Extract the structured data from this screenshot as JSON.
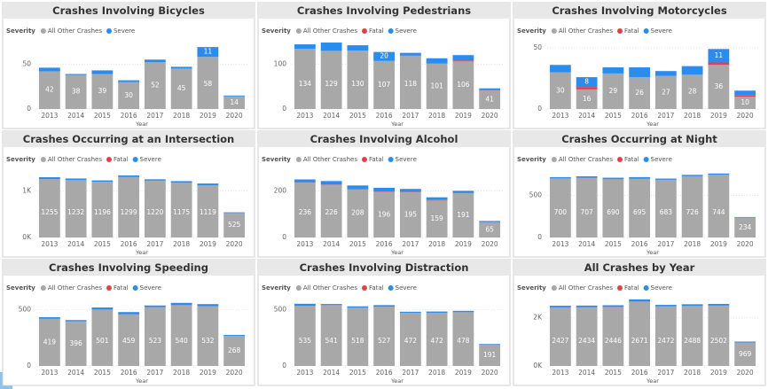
{
  "chart_data": [
    {
      "type": "bar",
      "title": "Crashes Involving Bicycles",
      "legend_title": "Severity",
      "x_label": "Year",
      "categories": [
        "2013",
        "2014",
        "2015",
        "2016",
        "2017",
        "2018",
        "2019",
        "2020"
      ],
      "ylim": [
        0,
        75
      ],
      "yticks": [
        0,
        50
      ],
      "series": [
        {
          "name": "All Other Crashes",
          "color": "#a8a8a8",
          "values": [
            42,
            38,
            39,
            30,
            52,
            45,
            58,
            14
          ]
        },
        {
          "name": "Severe",
          "color": "#2b8cf0",
          "values": [
            4,
            1,
            4,
            2,
            3,
            2,
            11,
            1
          ],
          "value_labels": [
            null,
            null,
            null,
            null,
            null,
            null,
            "11",
            null
          ]
        }
      ]
    },
    {
      "type": "bar",
      "title": "Crashes Involving Pedestrians",
      "legend_title": "Severity",
      "x_label": "Year",
      "categories": [
        "2013",
        "2014",
        "2015",
        "2016",
        "2017",
        "2018",
        "2019",
        "2020"
      ],
      "ylim": [
        0,
        150
      ],
      "yticks": [
        0,
        100
      ],
      "series": [
        {
          "name": "All Other Crashes",
          "color": "#a8a8a8",
          "values": [
            134,
            129,
            130,
            107,
            118,
            101,
            106,
            41
          ]
        },
        {
          "name": "Fatal",
          "color": "#e0404a",
          "values": [
            0,
            1,
            0,
            0,
            1,
            0,
            2,
            1
          ]
        },
        {
          "name": "Severe",
          "color": "#2b8cf0",
          "values": [
            10,
            18,
            12,
            20,
            6,
            12,
            12,
            4
          ],
          "value_labels": [
            null,
            null,
            null,
            "20",
            null,
            null,
            null,
            null
          ]
        }
      ]
    },
    {
      "type": "bar",
      "title": "Crashes Involving Motorcycles",
      "legend_title": "Severity",
      "x_label": "Year",
      "categories": [
        "2013",
        "2014",
        "2015",
        "2016",
        "2017",
        "2018",
        "2019",
        "2020"
      ],
      "ylim": [
        0,
        55
      ],
      "yticks": [
        0,
        50
      ],
      "series": [
        {
          "name": "All Other Crashes",
          "color": "#a8a8a8",
          "values": [
            30,
            16,
            29,
            26,
            27,
            28,
            36,
            10
          ]
        },
        {
          "name": "Fatal",
          "color": "#e0404a",
          "values": [
            0,
            2,
            0,
            0,
            0,
            0,
            2,
            1
          ]
        },
        {
          "name": "Severe",
          "color": "#2b8cf0",
          "values": [
            6,
            8,
            5,
            8,
            4,
            7,
            11,
            4
          ],
          "value_labels": [
            null,
            "8",
            null,
            null,
            null,
            null,
            "11",
            null
          ]
        }
      ]
    },
    {
      "type": "bar",
      "title": "Crashes Occurring at an Intersection",
      "legend_title": "Severity",
      "x_label": "Year",
      "categories": [
        "2013",
        "2014",
        "2015",
        "2016",
        "2017",
        "2018",
        "2019",
        "2020"
      ],
      "ylim": [
        0,
        1450
      ],
      "yticks": [
        {
          "value": 0,
          "label": "0K"
        },
        {
          "value": 1000,
          "label": "1K"
        }
      ],
      "series": [
        {
          "name": "All Other Crashes",
          "color": "#a8a8a8",
          "values": [
            1255,
            1232,
            1196,
            1299,
            1220,
            1175,
            1119,
            525
          ]
        },
        {
          "name": "Fatal",
          "color": "#e0404a",
          "values": [
            3,
            3,
            3,
            3,
            3,
            3,
            3,
            2
          ]
        },
        {
          "name": "Severe",
          "color": "#2b8cf0",
          "values": [
            40,
            35,
            30,
            35,
            30,
            35,
            40,
            15
          ]
        }
      ]
    },
    {
      "type": "bar",
      "title": "Crashes Involving Alcohol",
      "legend_title": "Severity",
      "x_label": "Year",
      "categories": [
        "2013",
        "2014",
        "2015",
        "2016",
        "2017",
        "2018",
        "2019",
        "2020"
      ],
      "ylim": [
        0,
        290
      ],
      "yticks": [
        0,
        200
      ],
      "series": [
        {
          "name": "All Other Crashes",
          "color": "#a8a8a8",
          "values": [
            236,
            226,
            208,
            196,
            195,
            159,
            191,
            65
          ]
        },
        {
          "name": "Fatal",
          "color": "#e0404a",
          "values": [
            2,
            2,
            2,
            2,
            2,
            2,
            2,
            1
          ]
        },
        {
          "name": "Severe",
          "color": "#2b8cf0",
          "values": [
            12,
            15,
            14,
            16,
            12,
            12,
            8,
            5
          ]
        }
      ]
    },
    {
      "type": "bar",
      "title": "Crashes Occurring at Night",
      "legend_title": "Severity",
      "x_label": "Year",
      "categories": [
        "2013",
        "2014",
        "2015",
        "2016",
        "2017",
        "2018",
        "2019",
        "2020"
      ],
      "ylim": [
        0,
        800
      ],
      "yticks": [
        0,
        500
      ],
      "series": [
        {
          "name": "All Other Crashes",
          "color": "#a8a8a8",
          "values": [
            700,
            707,
            690,
            695,
            683,
            726,
            744,
            234
          ]
        },
        {
          "name": "Fatal",
          "color": "#e0404a",
          "values": [
            2,
            2,
            2,
            2,
            2,
            2,
            2,
            1
          ]
        },
        {
          "name": "Severe",
          "color": "#2b8cf0",
          "values": [
            15,
            18,
            18,
            20,
            15,
            16,
            14,
            8
          ]
        }
      ]
    },
    {
      "type": "bar",
      "title": "Crashes Involving Speeding",
      "legend_title": "Severity",
      "x_label": "Year",
      "categories": [
        "2013",
        "2014",
        "2015",
        "2016",
        "2017",
        "2018",
        "2019",
        "2020"
      ],
      "ylim": [
        0,
        600
      ],
      "yticks": [
        0,
        500
      ],
      "series": [
        {
          "name": "All Other Crashes",
          "color": "#a8a8a8",
          "values": [
            419,
            396,
            501,
            459,
            523,
            540,
            532,
            268
          ]
        },
        {
          "name": "Fatal",
          "color": "#e0404a",
          "values": [
            1,
            1,
            2,
            1,
            1,
            2,
            1,
            1
          ]
        },
        {
          "name": "Severe",
          "color": "#2b8cf0",
          "values": [
            15,
            12,
            18,
            20,
            15,
            20,
            18,
            8
          ]
        }
      ]
    },
    {
      "type": "bar",
      "title": "Crashes Involving Distraction",
      "legend_title": "Severity",
      "x_label": "Year",
      "categories": [
        "2013",
        "2014",
        "2015",
        "2016",
        "2017",
        "2018",
        "2019",
        "2020"
      ],
      "ylim": [
        0,
        600
      ],
      "yticks": [
        0,
        500
      ],
      "series": [
        {
          "name": "All Other Crashes",
          "color": "#a8a8a8",
          "values": [
            535,
            541,
            518,
            527,
            472,
            472,
            478,
            191
          ]
        },
        {
          "name": "Fatal",
          "color": "#e0404a",
          "values": [
            1,
            1,
            1,
            1,
            1,
            1,
            1,
            1
          ]
        },
        {
          "name": "Severe",
          "color": "#2b8cf0",
          "values": [
            18,
            10,
            12,
            14,
            10,
            12,
            12,
            5
          ]
        }
      ]
    },
    {
      "type": "bar",
      "title": "All Crashes by Year",
      "legend_title": "Severity",
      "x_label": "Year",
      "categories": [
        "2013",
        "2014",
        "2015",
        "2016",
        "2017",
        "2018",
        "2019",
        "2020"
      ],
      "ylim": [
        0,
        2800
      ],
      "yticks": [
        {
          "value": 0,
          "label": "0K"
        },
        {
          "value": 2000,
          "label": "2K"
        }
      ],
      "series": [
        {
          "name": "All Other Crashes",
          "color": "#a8a8a8",
          "values": [
            2427,
            2434,
            2446,
            2671,
            2472,
            2488,
            2502,
            969
          ]
        },
        {
          "name": "Fatal",
          "color": "#e0404a",
          "values": [
            8,
            8,
            8,
            8,
            8,
            8,
            8,
            5
          ]
        },
        {
          "name": "Severe",
          "color": "#2b8cf0",
          "values": [
            70,
            70,
            70,
            90,
            60,
            70,
            70,
            40
          ]
        }
      ]
    }
  ]
}
